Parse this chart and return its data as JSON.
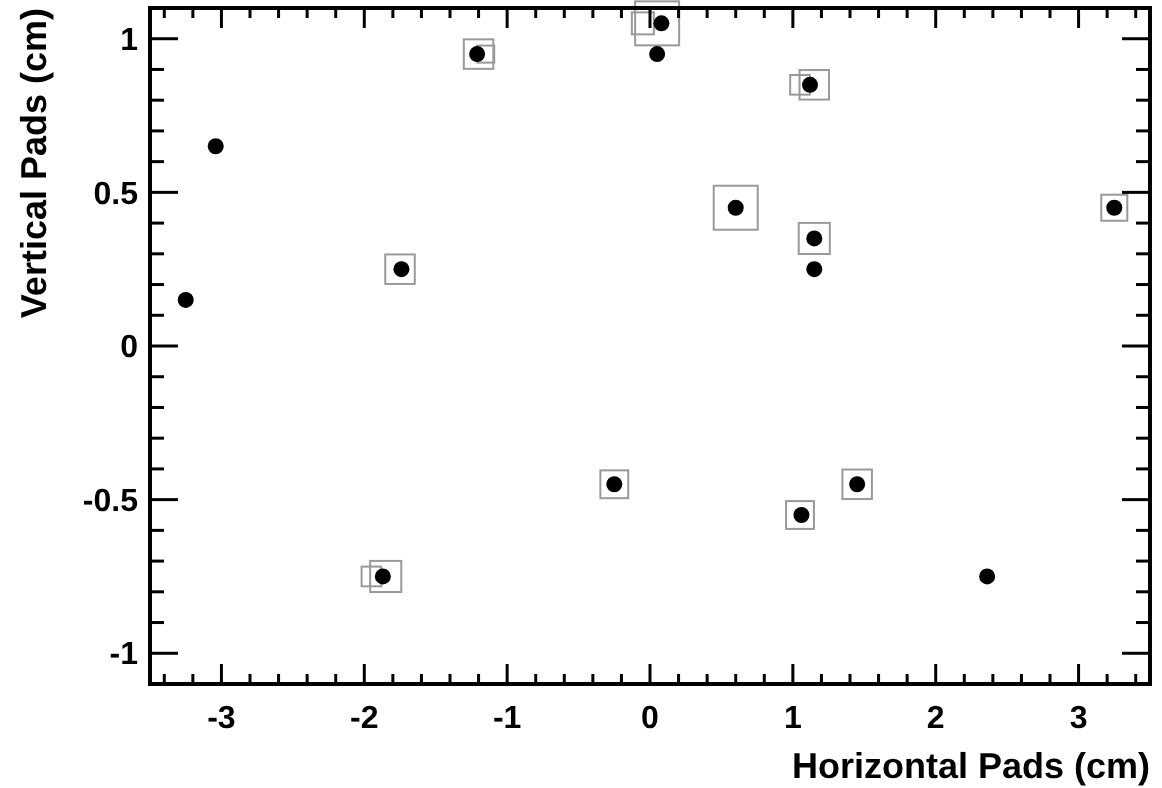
{
  "chart_data": {
    "type": "scatter",
    "xlabel": "Horizontal Pads (cm)",
    "ylabel": "Vertical Pads (cm)",
    "xlim": [
      -3.5,
      3.5
    ],
    "ylim": [
      -1.1,
      1.1
    ],
    "xticks": [
      {
        "value": -3.4,
        "label": null
      },
      {
        "value": -3.2,
        "label": null
      },
      -3,
      {
        "value": -2.8,
        "label": null
      },
      {
        "value": -2.6,
        "label": null
      },
      {
        "value": -2.4,
        "label": null
      },
      {
        "value": -2.2,
        "label": null
      },
      -2,
      {
        "value": -1.8,
        "label": null
      },
      {
        "value": -1.6,
        "label": null
      },
      {
        "value": -1.4,
        "label": null
      },
      {
        "value": -1.2,
        "label": null
      },
      -1,
      {
        "value": -0.8,
        "label": null
      },
      {
        "value": -0.6,
        "label": null
      },
      {
        "value": -0.4,
        "label": null
      },
      {
        "value": -0.2,
        "label": null
      },
      0,
      {
        "value": 0.2,
        "label": null
      },
      {
        "value": 0.4,
        "label": null
      },
      {
        "value": 0.6,
        "label": null
      },
      {
        "value": 0.8,
        "label": null
      },
      1,
      {
        "value": 1.2,
        "label": null
      },
      {
        "value": 1.4,
        "label": null
      },
      {
        "value": 1.6,
        "label": null
      },
      {
        "value": 1.8,
        "label": null
      },
      2,
      {
        "value": 2.2,
        "label": null
      },
      {
        "value": 2.4,
        "label": null
      },
      {
        "value": 2.6,
        "label": null
      },
      {
        "value": 2.8,
        "label": null
      },
      3,
      {
        "value": 3.2,
        "label": null
      },
      {
        "value": 3.4,
        "label": null
      }
    ],
    "yticks": [
      -1,
      {
        "value": -0.9,
        "label": null
      },
      {
        "value": -0.8,
        "label": null
      },
      {
        "value": -0.7,
        "label": null
      },
      {
        "value": -0.6,
        "label": null
      },
      -0.5,
      {
        "value": -0.4,
        "label": null
      },
      {
        "value": -0.3,
        "label": null
      },
      {
        "value": -0.2,
        "label": null
      },
      {
        "value": -0.1,
        "label": null
      },
      0,
      {
        "value": 0.1,
        "label": null
      },
      {
        "value": 0.2,
        "label": null
      },
      {
        "value": 0.3,
        "label": null
      },
      {
        "value": 0.4,
        "label": null
      },
      0.5,
      {
        "value": 0.6,
        "label": null
      },
      {
        "value": 0.7,
        "label": null
      },
      {
        "value": 0.8,
        "label": null
      },
      {
        "value": 0.9,
        "label": null
      },
      1
    ],
    "grid": false,
    "series": [
      {
        "type": "bubble",
        "marker": "square",
        "color": "#999999",
        "x": [
          0.05,
          -0.05,
          -1.2,
          -1.15,
          1.15,
          1.05,
          0.6,
          1.15,
          3.25,
          -1.75,
          -0.25,
          1.45,
          1.05,
          -1.85,
          -1.95
        ],
        "values": [
          1.05,
          1.05,
          0.95,
          0.95,
          0.85,
          0.85,
          0.45,
          0.35,
          0.45,
          0.25,
          -0.45,
          -0.45,
          -0.55,
          -0.75,
          -0.75
        ],
        "sizes": [
          1,
          0.25,
          0.45,
          0.15,
          0.45,
          0.2,
          1,
          0.5,
          0.35,
          0.45,
          0.4,
          0.45,
          0.4,
          0.5,
          0.2
        ]
      },
      {
        "marker": "circle",
        "color": "#000000",
        "x": [
          0.08,
          0.05,
          -1.21,
          1.12,
          -3.04,
          0.6,
          3.25,
          1.15,
          1.15,
          -1.74,
          -3.25,
          -0.25,
          1.45,
          1.06,
          -1.87,
          2.36
        ],
        "values": [
          1.05,
          0.95,
          0.95,
          0.85,
          0.65,
          0.45,
          0.45,
          0.35,
          0.25,
          0.25,
          0.15,
          -0.45,
          -0.45,
          -0.55,
          -0.75,
          -0.75
        ]
      }
    ]
  }
}
